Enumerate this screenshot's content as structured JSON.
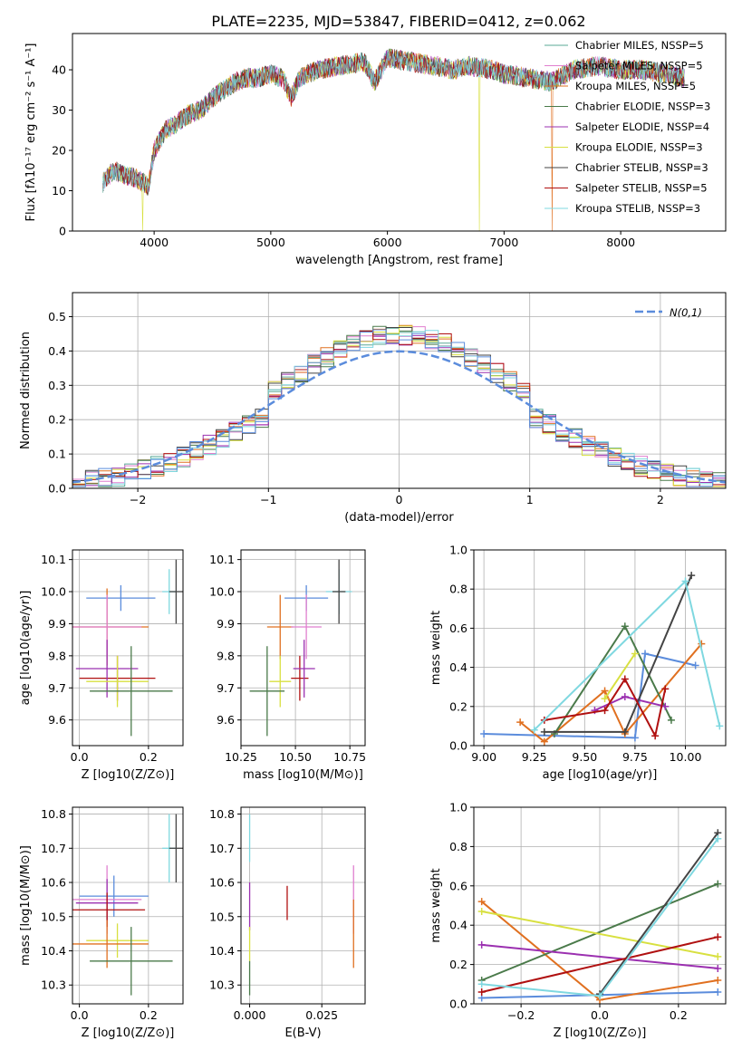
{
  "figure_title": "PLATE=2235, MJD=53847, FIBERID=0412, z=0.062",
  "colors": {
    "Chabrier MILES": "#5aa896",
    "Salpeter MILES": "#e07fcf",
    "Kroupa MILES": "#e07020",
    "Chabrier ELODIE": "#4a7a4a",
    "Salpeter ELODIE": "#9b30b0",
    "Kroupa ELODIE": "#d8e040",
    "Chabrier STELIB": "#444444",
    "Salpeter STELIB": "#b01010",
    "Kroupa STELIB": "#7fd8e0",
    "normal_curve": "#5b8cdc",
    "blue_model": "#5b8cdc",
    "grid": "#b0b0b0"
  },
  "chart_data": [
    {
      "type": "line",
      "panel": "spectrum",
      "title": "PLATE=2235, MJD=53847, FIBERID=0412, z=0.062",
      "xlabel": "wavelength [Angstrom, rest frame]",
      "ylabel": "Flux [fλ10⁻¹⁷ erg cm⁻² s⁻¹ A⁻¹]",
      "xlim": [
        3300,
        8900
      ],
      "ylim": [
        0,
        49
      ],
      "xticks": [
        4000,
        5000,
        6000,
        7000,
        8000
      ],
      "yticks": [
        0,
        10,
        20,
        30,
        40
      ],
      "x": [
        3560,
        3650,
        3750,
        3850,
        3900,
        3950,
        4000,
        4100,
        4200,
        4300,
        4400,
        4500,
        4600,
        4700,
        4800,
        4900,
        5000,
        5100,
        5175,
        5250,
        5400,
        5600,
        5800,
        5890,
        6000,
        6200,
        6400,
        6563,
        6700,
        6900,
        7000,
        7200,
        7400,
        7600,
        7800,
        8000,
        8200,
        8400,
        8550
      ],
      "y": [
        12,
        15,
        14,
        13,
        12,
        11,
        20,
        25,
        27,
        29,
        30,
        33,
        35,
        37,
        38,
        38,
        39,
        38,
        33,
        38,
        40,
        41,
        42,
        37,
        43,
        42,
        41,
        40,
        41,
        40,
        39,
        38,
        37,
        40,
        41,
        40,
        40,
        39,
        38
      ],
      "dropouts": [
        {
          "x": 3900,
          "series": "Kroupa ELODIE"
        },
        {
          "x": 6790,
          "series": "Kroupa ELODIE"
        },
        {
          "x": 7410,
          "series": "Kroupa MILES"
        }
      ],
      "legend_position": "top-right",
      "series": [
        {
          "name": "Chabrier MILES, N_SSP=5",
          "key": "Chabrier MILES"
        },
        {
          "name": "Salpeter MILES, N_SSP=5",
          "key": "Salpeter MILES"
        },
        {
          "name": "Kroupa MILES, N_SSP=5",
          "key": "Kroupa MILES"
        },
        {
          "name": "Chabrier ELODIE, N_SSP=3",
          "key": "Chabrier ELODIE"
        },
        {
          "name": "Salpeter ELODIE, N_SSP=4",
          "key": "Salpeter ELODIE"
        },
        {
          "name": "Kroupa ELODIE, N_SSP=3",
          "key": "Kroupa ELODIE"
        },
        {
          "name": "Chabrier STELIB, N_SSP=3",
          "key": "Chabrier STELIB"
        },
        {
          "name": "Salpeter STELIB, N_SSP=5",
          "key": "Salpeter STELIB"
        },
        {
          "name": "Kroupa STELIB, N_SSP=3",
          "key": "Kroupa STELIB"
        }
      ]
    },
    {
      "type": "bar",
      "panel": "residual-histogram",
      "xlabel": "(data-model)/error",
      "ylabel": "Normed distribution",
      "xlim": [
        -2.5,
        2.5
      ],
      "ylim": [
        0,
        0.57
      ],
      "xticks": [
        -2,
        -1,
        0,
        1,
        2
      ],
      "yticks": [
        0.0,
        0.1,
        0.2,
        0.3,
        0.4,
        0.5
      ],
      "bin_width": 0.1,
      "legend_label": "N(0,1)",
      "legend_position": "top-right",
      "grid": true
    },
    {
      "type": "scatter",
      "panel": "Z-vs-age",
      "xlabel": "Z [log10(Z/Z⊙)]",
      "ylabel": "age [log10(age/yr)]",
      "xlim": [
        -0.02,
        0.3
      ],
      "ylim": [
        9.52,
        10.13
      ],
      "xticks": [
        0.0,
        0.2
      ],
      "yticks": [
        9.6,
        9.7,
        9.8,
        9.9,
        10.0,
        10.1
      ],
      "points": [
        {
          "series": "Kroupa STELIB",
          "x": 0.26,
          "y": 10.0,
          "xerr": 0.02,
          "yerr": 0.07
        },
        {
          "series": "Chabrier STELIB",
          "x": 0.28,
          "y": 10.0,
          "xerr": 0.02,
          "yerr": 0.1
        },
        {
          "series": "blue",
          "x": 0.12,
          "y": 9.98,
          "xerr": 0.1,
          "yerr": 0.04
        },
        {
          "series": "Kroupa MILES",
          "x": 0.08,
          "y": 9.89,
          "xerr": 0.12,
          "yerr": 0.12
        },
        {
          "series": "Salpeter MILES",
          "x": 0.08,
          "y": 9.89,
          "xerr": 0.1,
          "yerr": 0.1
        },
        {
          "series": "Salpeter STELIB",
          "x": 0.11,
          "y": 9.73,
          "xerr": 0.11,
          "yerr": 0.07
        },
        {
          "series": "Salpeter ELODIE",
          "x": 0.08,
          "y": 9.76,
          "xerr": 0.09,
          "yerr": 0.09
        },
        {
          "series": "Kroupa ELODIE",
          "x": 0.11,
          "y": 9.72,
          "xerr": 0.09,
          "yerr": 0.08
        },
        {
          "series": "Chabrier ELODIE",
          "x": 0.15,
          "y": 9.69,
          "xerr": 0.12,
          "yerr": 0.14
        }
      ]
    },
    {
      "type": "scatter",
      "panel": "mass-vs-age",
      "xlabel": "mass [log10(M/M⊙)]",
      "ylabel": "",
      "xlim": [
        10.25,
        10.82
      ],
      "ylim": [
        9.52,
        10.13
      ],
      "xticks": [
        10.25,
        10.5,
        10.75
      ],
      "yticks": [
        9.6,
        9.7,
        9.8,
        9.9,
        10.0,
        10.1
      ],
      "points": [
        {
          "series": "Kroupa STELIB",
          "x": 10.7,
          "y": 10.0,
          "xerr": 0.06,
          "yerr": 0.07
        },
        {
          "series": "Chabrier STELIB",
          "x": 10.7,
          "y": 10.0,
          "xerr": 0.03,
          "yerr": 0.1
        },
        {
          "series": "blue",
          "x": 10.55,
          "y": 9.98,
          "xerr": 0.1,
          "yerr": 0.04
        },
        {
          "series": "Kroupa MILES",
          "x": 10.43,
          "y": 9.89,
          "xerr": 0.06,
          "yerr": 0.1
        },
        {
          "series": "Salpeter MILES",
          "x": 10.55,
          "y": 9.89,
          "xerr": 0.07,
          "yerr": 0.1
        },
        {
          "series": "Salpeter STELIB",
          "x": 10.52,
          "y": 9.73,
          "xerr": 0.04,
          "yerr": 0.07
        },
        {
          "series": "Salpeter ELODIE",
          "x": 10.54,
          "y": 9.76,
          "xerr": 0.05,
          "yerr": 0.09
        },
        {
          "series": "Kroupa ELODIE",
          "x": 10.43,
          "y": 9.72,
          "xerr": 0.05,
          "yerr": 0.08
        },
        {
          "series": "Chabrier ELODIE",
          "x": 10.37,
          "y": 9.69,
          "xerr": 0.08,
          "yerr": 0.14
        }
      ]
    },
    {
      "type": "line",
      "panel": "age-vs-mass-weight",
      "xlabel": "age  [log10(age/yr)]",
      "ylabel": "mass weight",
      "xlim": [
        8.95,
        10.2
      ],
      "ylim": [
        0.0,
        1.0
      ],
      "xticks": [
        9.0,
        9.25,
        9.5,
        9.75,
        10.0
      ],
      "yticks": [
        0.0,
        0.2,
        0.4,
        0.6,
        0.8,
        1.0
      ],
      "series": [
        {
          "key": "blue",
          "x": [
            9.0,
            9.75,
            9.8,
            10.05
          ],
          "y": [
            0.06,
            0.04,
            0.47,
            0.41
          ]
        },
        {
          "key": "Kroupa MILES",
          "x": [
            9.18,
            9.3,
            9.6,
            9.7,
            10.08
          ],
          "y": [
            0.12,
            0.02,
            0.28,
            0.06,
            0.52
          ]
        },
        {
          "key": "Chabrier ELODIE",
          "x": [
            9.35,
            9.7,
            9.93
          ],
          "y": [
            0.06,
            0.61,
            0.13
          ]
        },
        {
          "key": "Salpeter ELODIE",
          "x": [
            9.55,
            9.7,
            9.9
          ],
          "y": [
            0.18,
            0.25,
            0.2
          ]
        },
        {
          "key": "Kroupa ELODIE",
          "x": [
            9.6,
            9.75
          ],
          "y": [
            0.24,
            0.47
          ]
        },
        {
          "key": "Chabrier STELIB",
          "x": [
            9.3,
            9.7,
            10.03
          ],
          "y": [
            0.07,
            0.07,
            0.87
          ]
        },
        {
          "key": "Salpeter STELIB",
          "x": [
            9.3,
            9.6,
            9.7,
            9.85,
            9.9
          ],
          "y": [
            0.13,
            0.18,
            0.34,
            0.05,
            0.29
          ]
        },
        {
          "key": "Kroupa STELIB",
          "x": [
            9.25,
            10.0,
            10.17
          ],
          "y": [
            0.08,
            0.84,
            0.1
          ]
        }
      ]
    },
    {
      "type": "scatter",
      "panel": "Z-vs-mass",
      "xlabel": "Z [log10(Z/Z⊙)]",
      "ylabel": "mass [log10(M/M⊙)]",
      "xlim": [
        -0.02,
        0.3
      ],
      "ylim": [
        10.245,
        10.82
      ],
      "xticks": [
        0.0,
        0.2
      ],
      "yticks": [
        10.3,
        10.4,
        10.5,
        10.6,
        10.7,
        10.8
      ],
      "points": [
        {
          "series": "Kroupa STELIB",
          "x": 0.26,
          "y": 10.7,
          "xerr": 0.02,
          "yerr": 0.1
        },
        {
          "series": "Chabrier STELIB",
          "x": 0.28,
          "y": 10.7,
          "xerr": 0.02,
          "yerr": 0.1
        },
        {
          "series": "blue",
          "x": 0.1,
          "y": 10.56,
          "xerr": 0.1,
          "yerr": 0.06
        },
        {
          "series": "Salpeter MILES",
          "x": 0.08,
          "y": 10.55,
          "xerr": 0.1,
          "yerr": 0.1
        },
        {
          "series": "Salpeter ELODIE",
          "x": 0.08,
          "y": 10.54,
          "xerr": 0.09,
          "yerr": 0.07
        },
        {
          "series": "Salpeter STELIB",
          "x": 0.08,
          "y": 10.52,
          "xerr": 0.11,
          "yerr": 0.05
        },
        {
          "series": "Kroupa ELODIE",
          "x": 0.11,
          "y": 10.43,
          "xerr": 0.09,
          "yerr": 0.05
        },
        {
          "series": "Kroupa MILES",
          "x": 0.08,
          "y": 10.42,
          "xerr": 0.12,
          "yerr": 0.07
        },
        {
          "series": "Chabrier ELODIE",
          "x": 0.15,
          "y": 10.37,
          "xerr": 0.12,
          "yerr": 0.1
        }
      ]
    },
    {
      "type": "scatter",
      "panel": "EBV-vs-mass",
      "xlabel": "E(B-V)",
      "ylabel": "",
      "xlim": [
        -0.003,
        0.04
      ],
      "ylim": [
        10.245,
        10.82
      ],
      "xticks": [
        0.0,
        0.025
      ],
      "yticks": [
        10.3,
        10.4,
        10.5,
        10.6,
        10.7,
        10.8
      ],
      "points": [
        {
          "series": "Kroupa STELIB",
          "x": 0.0,
          "y": 10.73,
          "yerr": 0.07
        },
        {
          "series": "Salpeter ELODIE",
          "x": 0.0,
          "y": 10.53,
          "yerr": 0.07
        },
        {
          "series": "Kroupa ELODIE",
          "x": 0.0,
          "y": 10.42,
          "yerr": 0.05
        },
        {
          "series": "Chabrier ELODIE",
          "x": 0.0,
          "y": 10.32,
          "yerr": 0.05
        },
        {
          "series": "Salpeter STELIB",
          "x": 0.013,
          "y": 10.54,
          "yerr": 0.05
        },
        {
          "series": "Salpeter MILES",
          "x": 0.036,
          "y": 10.55,
          "yerr": 0.1
        },
        {
          "series": "Kroupa MILES",
          "x": 0.036,
          "y": 10.45,
          "yerr": 0.1
        }
      ]
    },
    {
      "type": "line",
      "panel": "Z-vs-mass-weight",
      "xlabel": "Z [log10(Z/Z⊙)]",
      "ylabel": "mass weight",
      "xlim": [
        -0.32,
        0.32
      ],
      "ylim": [
        0.0,
        1.0
      ],
      "xticks": [
        -0.2,
        0.0,
        0.2
      ],
      "yticks": [
        0.0,
        0.2,
        0.4,
        0.6,
        0.8,
        1.0
      ],
      "series": [
        {
          "key": "blue",
          "x": [
            -0.3,
            0.3
          ],
          "y": [
            0.03,
            0.06
          ]
        },
        {
          "key": "Kroupa MILES",
          "x": [
            -0.3,
            0.0,
            0.3
          ],
          "y": [
            0.52,
            0.02,
            0.12
          ]
        },
        {
          "key": "Chabrier ELODIE",
          "x": [
            -0.3,
            0.3
          ],
          "y": [
            0.12,
            0.61
          ]
        },
        {
          "key": "Salpeter ELODIE",
          "x": [
            -0.3,
            0.3
          ],
          "y": [
            0.3,
            0.18
          ]
        },
        {
          "key": "Kroupa ELODIE",
          "x": [
            -0.3,
            0.3
          ],
          "y": [
            0.47,
            0.24
          ]
        },
        {
          "key": "Chabrier STELIB",
          "x": [
            0.0,
            0.3
          ],
          "y": [
            0.05,
            0.87
          ]
        },
        {
          "key": "Salpeter STELIB",
          "x": [
            -0.3,
            0.3
          ],
          "y": [
            0.06,
            0.34
          ]
        },
        {
          "key": "Kroupa STELIB",
          "x": [
            -0.3,
            0.0,
            0.3
          ],
          "y": [
            0.1,
            0.04,
            0.84
          ]
        }
      ]
    }
  ]
}
